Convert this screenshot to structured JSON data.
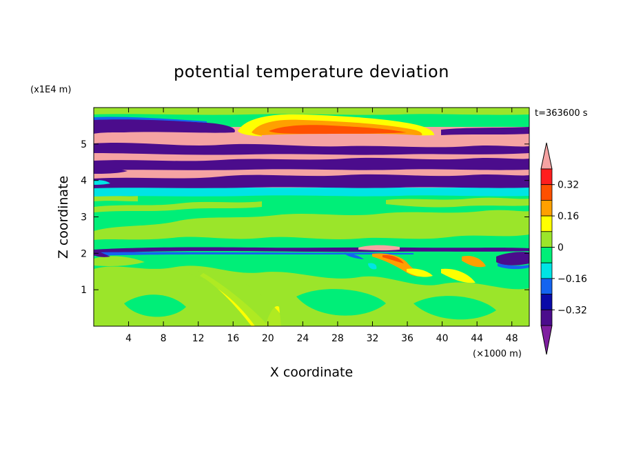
{
  "chart_data": {
    "type": "heatmap",
    "title": "potential temperature deviation",
    "xlabel": "X coordinate",
    "ylabel": "Z coordinate",
    "x_unit": "(×1000 m)",
    "y_unit": "(x1E4 m)",
    "time_label": "t=363600 s",
    "xlim": [
      0,
      50
    ],
    "ylim": [
      0,
      6
    ],
    "x_ticks": [
      4,
      8,
      12,
      16,
      20,
      24,
      28,
      32,
      36,
      40,
      44,
      48
    ],
    "y_ticks": [
      1,
      2,
      3,
      4,
      5
    ],
    "colorbar": {
      "levels": [
        -0.48,
        -0.4,
        -0.32,
        -0.24,
        -0.16,
        -0.08,
        0,
        0.08,
        0.16,
        0.24,
        0.32,
        0.4
      ],
      "labels": [
        "0.32",
        "0.16",
        "0",
        "−0.16",
        "−0.32"
      ],
      "label_values": [
        0.32,
        0.16,
        0,
        -0.16,
        -0.32
      ],
      "colors": [
        "#7f1fa0",
        "#4b0c8c",
        "#0a0aa8",
        "#1464f0",
        "#00e4e4",
        "#00ee78",
        "#9be52a",
        "#ffff00",
        "#ffa000",
        "#ff5000",
        "#ff1e1e",
        "#f5a3a3"
      ],
      "extend": "both"
    },
    "background_color": "#00ee78",
    "bands": [
      {
        "z_range": [
          5.7,
          6.0
        ],
        "dominant": "#00ee78",
        "note_color_secondary": "#9be52a"
      },
      {
        "z_range": [
          5.45,
          5.65
        ],
        "dominant": "#4b0c8c"
      },
      {
        "z_range": [
          5.2,
          5.45
        ],
        "dominant": "#f5a3a3"
      },
      {
        "z_range": [
          4.95,
          5.2
        ],
        "dominant": "#4b0c8c"
      },
      {
        "z_range": [
          4.75,
          4.95
        ],
        "dominant": "#f5a3a3"
      },
      {
        "z_range": [
          4.55,
          4.75
        ],
        "dominant": "#4b0c8c"
      },
      {
        "z_range": [
          4.35,
          4.55
        ],
        "dominant": "#f5a3a3"
      },
      {
        "z_range": [
          4.15,
          4.35
        ],
        "dominant": "#4b0c8c"
      },
      {
        "z_range": [
          3.95,
          4.15
        ],
        "dominant": "#f5a3a3"
      },
      {
        "z_range": [
          3.75,
          3.95
        ],
        "dominant": "#4b0c8c"
      },
      {
        "z_range": [
          3.6,
          3.75
        ],
        "dominant": "#00e4e4"
      },
      {
        "z_range": [
          2.15,
          3.6
        ],
        "dominant": "#00ee78"
      },
      {
        "z_range": [
          2.0,
          2.15
        ],
        "dominant": "#4b0c8c"
      },
      {
        "z_range": [
          0.0,
          2.0
        ],
        "dominant": "#00ee78"
      }
    ]
  }
}
